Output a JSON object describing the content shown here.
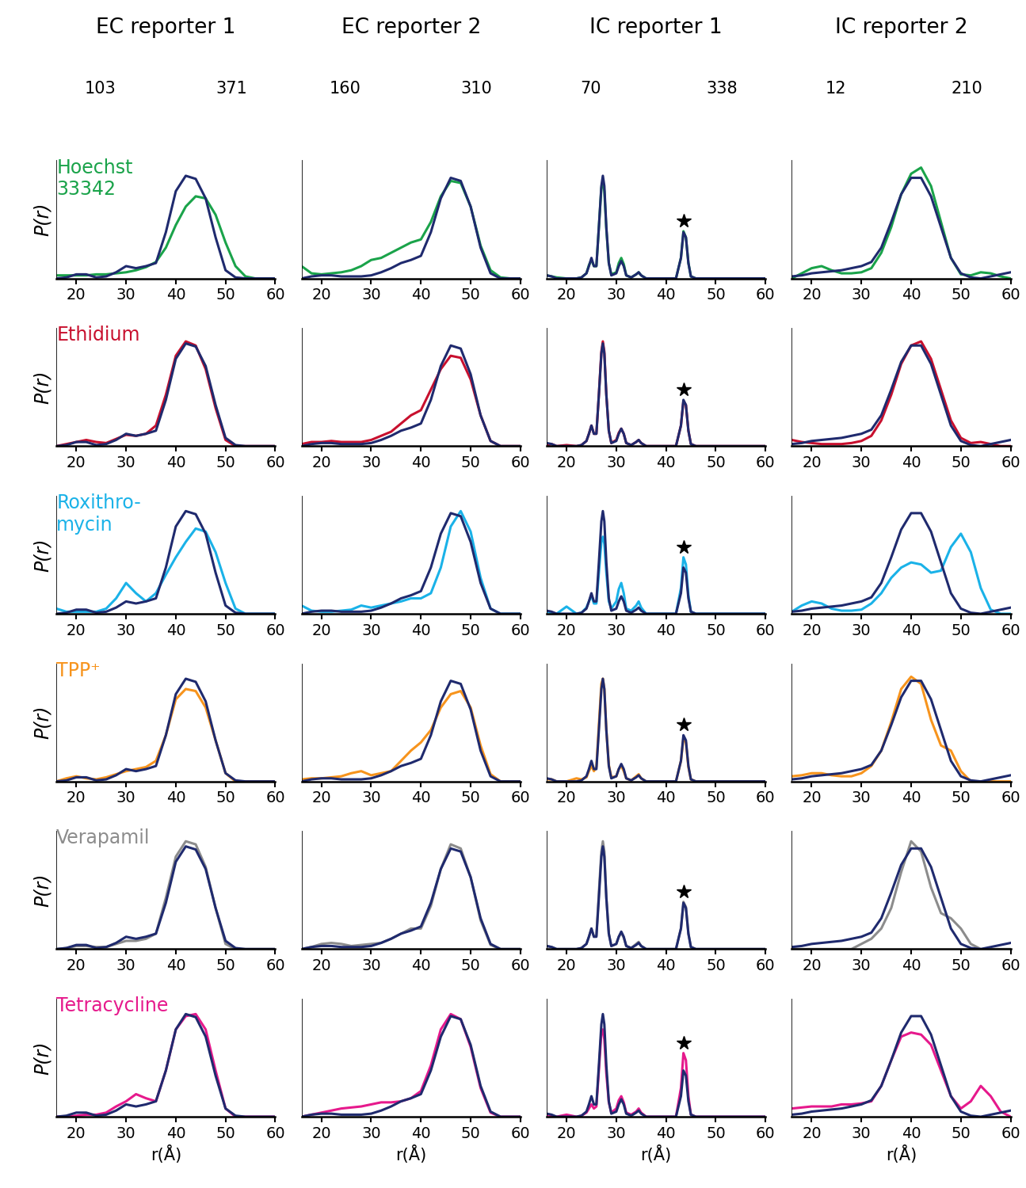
{
  "chart_data": {
    "type": "line",
    "xlim": [
      16,
      60
    ],
    "xticks": [
      20,
      30,
      40,
      50,
      60
    ],
    "ylim": [
      0,
      1.15
    ],
    "x_label": "r(Å)",
    "y_label": "P(r)",
    "tick_labels": "x",
    "grid": false,
    "columns": [
      {
        "title": "EC reporter 1",
        "residues": [
          "103",
          "371"
        ],
        "x": [
          16,
          18,
          20,
          22,
          24,
          26,
          28,
          30,
          32,
          34,
          36,
          38,
          40,
          42,
          44,
          46,
          48,
          50,
          52,
          54,
          56,
          58,
          60
        ],
        "reference": {
          "color": "#1f2a6e",
          "values": [
            0,
            0.01,
            0.04,
            0.04,
            0.01,
            0.02,
            0.06,
            0.12,
            0.1,
            0.12,
            0.15,
            0.45,
            0.85,
            1.0,
            0.97,
            0.78,
            0.4,
            0.08,
            0.01,
            0,
            0,
            0,
            0
          ]
        }
      },
      {
        "title": "EC reporter 2",
        "residues": [
          "160",
          "310"
        ],
        "x": [
          16,
          18,
          20,
          22,
          24,
          26,
          28,
          30,
          32,
          34,
          36,
          38,
          40,
          42,
          44,
          46,
          48,
          50,
          52,
          54,
          56,
          58,
          60
        ],
        "reference": {
          "color": "#1f2a6e",
          "values": [
            0,
            0.02,
            0.03,
            0.03,
            0.02,
            0.02,
            0.02,
            0.03,
            0.06,
            0.1,
            0.15,
            0.18,
            0.22,
            0.45,
            0.78,
            0.98,
            0.95,
            0.7,
            0.3,
            0.05,
            0,
            0,
            0
          ]
        }
      },
      {
        "title": "IC reporter 1",
        "residues": [
          "70",
          "338"
        ],
        "star_x": 43.6,
        "marker": "star",
        "x": [
          16,
          17,
          18,
          20,
          22,
          23,
          24,
          24.5,
          25,
          25.5,
          26,
          26.5,
          27,
          27.3,
          27.6,
          28,
          28.5,
          29,
          30,
          30.5,
          31,
          31.5,
          32,
          33,
          34,
          34.5,
          35,
          36,
          38,
          40,
          42,
          43,
          43.5,
          44,
          44.5,
          45,
          46,
          48,
          50,
          55,
          60
        ],
        "reference": {
          "color": "#1f2a6e",
          "values": [
            0.03,
            0.02,
            0,
            0,
            0,
            0.01,
            0.05,
            0.12,
            0.2,
            0.12,
            0.12,
            0.5,
            0.9,
            1.0,
            0.9,
            0.5,
            0.15,
            0.03,
            0.05,
            0.12,
            0.17,
            0.12,
            0.03,
            0.01,
            0.04,
            0.06,
            0.03,
            0,
            0,
            0,
            0,
            0.2,
            0.45,
            0.4,
            0.15,
            0.02,
            0,
            0,
            0,
            0,
            0
          ]
        }
      },
      {
        "title": "IC reporter 2",
        "residues": [
          "12",
          "210"
        ],
        "x": [
          16,
          18,
          20,
          22,
          24,
          26,
          28,
          30,
          32,
          34,
          36,
          38,
          40,
          42,
          44,
          46,
          48,
          50,
          52,
          54,
          56,
          58,
          60
        ],
        "reference": {
          "color": "#1f2a6e",
          "values": [
            0.02,
            0.03,
            0.05,
            0.06,
            0.07,
            0.08,
            0.1,
            0.12,
            0.16,
            0.3,
            0.55,
            0.82,
            0.98,
            0.98,
            0.8,
            0.5,
            0.2,
            0.05,
            0.01,
            0,
            0.02,
            0.04,
            0.06
          ]
        }
      }
    ],
    "series": [
      {
        "name": "Hoechst\n33342",
        "color": "#1aa34a",
        "values": [
          [
            0.03,
            0.03,
            0.03,
            0.03,
            0.04,
            0.04,
            0.05,
            0.06,
            0.08,
            0.11,
            0.16,
            0.3,
            0.52,
            0.7,
            0.8,
            0.78,
            0.62,
            0.35,
            0.12,
            0.02,
            0,
            0,
            0
          ],
          [
            0.12,
            0.05,
            0.04,
            0.05,
            0.06,
            0.08,
            0.12,
            0.18,
            0.2,
            0.25,
            0.3,
            0.35,
            0.38,
            0.55,
            0.8,
            0.95,
            0.93,
            0.7,
            0.32,
            0.08,
            0.01,
            0,
            0
          ],
          [
            0.03,
            0.02,
            0.01,
            0,
            0,
            0.01,
            0.05,
            0.13,
            0.18,
            0.12,
            0.12,
            0.5,
            0.88,
            0.95,
            0.85,
            0.48,
            0.15,
            0.04,
            0.06,
            0.15,
            0.2,
            0.14,
            0.03,
            0.01,
            0.04,
            0.06,
            0.03,
            0,
            0,
            0,
            0,
            0.2,
            0.46,
            0.4,
            0.15,
            0.02,
            0,
            0,
            0,
            0,
            0
          ],
          [
            0,
            0.05,
            0.1,
            0.12,
            0.08,
            0.05,
            0.05,
            0.06,
            0.1,
            0.25,
            0.5,
            0.82,
            1.02,
            1.08,
            0.9,
            0.55,
            0.2,
            0.04,
            0.03,
            0.06,
            0.05,
            0.02,
            0
          ]
        ]
      },
      {
        "name": "Ethidium",
        "color": "#c8102e",
        "values": [
          [
            0,
            0.02,
            0.04,
            0.06,
            0.04,
            0.03,
            0.07,
            0.11,
            0.1,
            0.12,
            0.2,
            0.5,
            0.88,
            1.02,
            0.98,
            0.75,
            0.37,
            0.06,
            0,
            0,
            0,
            0,
            0
          ],
          [
            0.02,
            0.04,
            0.04,
            0.05,
            0.04,
            0.04,
            0.04,
            0.06,
            0.1,
            0.14,
            0.22,
            0.3,
            0.35,
            0.55,
            0.75,
            0.88,
            0.86,
            0.65,
            0.3,
            0.05,
            0,
            0,
            0
          ],
          [
            0.01,
            0.02,
            0,
            0.01,
            0,
            0.01,
            0.05,
            0.12,
            0.2,
            0.12,
            0.12,
            0.5,
            0.92,
            1.02,
            0.92,
            0.5,
            0.15,
            0.03,
            0.06,
            0.13,
            0.17,
            0.12,
            0.03,
            0.01,
            0.04,
            0.06,
            0.03,
            0,
            0,
            0,
            0,
            0.2,
            0.44,
            0.4,
            0.15,
            0.02,
            0,
            0,
            0,
            0,
            0
          ],
          [
            0.06,
            0.04,
            0.03,
            0.02,
            0.02,
            0.02,
            0.03,
            0.05,
            0.1,
            0.25,
            0.5,
            0.8,
            0.98,
            1.02,
            0.85,
            0.55,
            0.25,
            0.08,
            0.03,
            0.04,
            0.02,
            0,
            0
          ]
        ]
      },
      {
        "name": "Roxithro-\nmycin",
        "color": "#1ab2e8",
        "values": [
          [
            0.05,
            0.02,
            0.02,
            0.02,
            0.02,
            0.05,
            0.15,
            0.3,
            0.2,
            0.12,
            0.2,
            0.38,
            0.55,
            0.7,
            0.83,
            0.8,
            0.6,
            0.3,
            0.05,
            0,
            0,
            0,
            0
          ],
          [
            0.08,
            0.03,
            0.02,
            0.02,
            0.03,
            0.04,
            0.08,
            0.06,
            0.08,
            0.1,
            0.12,
            0.15,
            0.15,
            0.2,
            0.45,
            0.85,
            1.0,
            0.8,
            0.35,
            0.05,
            0,
            0,
            0
          ],
          [
            0.02,
            0.01,
            0,
            0.07,
            0,
            0.01,
            0.06,
            0.12,
            0.18,
            0.1,
            0.1,
            0.4,
            0.7,
            0.75,
            0.68,
            0.4,
            0.12,
            0.05,
            0.12,
            0.24,
            0.3,
            0.2,
            0.05,
            0.03,
            0.08,
            0.12,
            0.06,
            0,
            0,
            0,
            0,
            0.25,
            0.55,
            0.48,
            0.18,
            0.02,
            0,
            0,
            0,
            0,
            0
          ],
          [
            0.02,
            0.08,
            0.12,
            0.1,
            0.05,
            0.03,
            0.03,
            0.04,
            0.1,
            0.2,
            0.35,
            0.45,
            0.5,
            0.48,
            0.4,
            0.42,
            0.65,
            0.78,
            0.6,
            0.25,
            0.04,
            0,
            0
          ]
        ]
      },
      {
        "name": "TPP⁺",
        "color": "#f7941d",
        "values": [
          [
            0,
            0.03,
            0.05,
            0.03,
            0.02,
            0.04,
            0.07,
            0.1,
            0.12,
            0.14,
            0.2,
            0.45,
            0.8,
            0.9,
            0.88,
            0.72,
            0.4,
            0.08,
            0,
            0,
            0,
            0,
            0
          ],
          [
            0.02,
            0.03,
            0.03,
            0.04,
            0.05,
            0.08,
            0.1,
            0.06,
            0.08,
            0.1,
            0.2,
            0.3,
            0.38,
            0.5,
            0.72,
            0.85,
            0.88,
            0.72,
            0.35,
            0.07,
            0,
            0,
            0
          ],
          [
            0.02,
            0.02,
            0,
            0,
            0.03,
            0.02,
            0.04,
            0.1,
            0.15,
            0.1,
            0.14,
            0.55,
            0.95,
            1.0,
            0.9,
            0.5,
            0.16,
            0.04,
            0.05,
            0.12,
            0.15,
            0.1,
            0.03,
            0.01,
            0.05,
            0.07,
            0.03,
            0,
            0,
            0,
            0,
            0.2,
            0.42,
            0.38,
            0.14,
            0.02,
            0,
            0,
            0,
            0,
            0
          ],
          [
            0.05,
            0.06,
            0.08,
            0.08,
            0.06,
            0.05,
            0.05,
            0.08,
            0.15,
            0.3,
            0.58,
            0.9,
            1.02,
            0.95,
            0.6,
            0.35,
            0.3,
            0.1,
            0,
            0,
            0,
            0,
            0
          ]
        ]
      },
      {
        "name": "Verapamil",
        "color": "#8c8c8c",
        "values": [
          [
            0,
            0.01,
            0.03,
            0.03,
            0.02,
            0.02,
            0.05,
            0.08,
            0.08,
            0.1,
            0.15,
            0.5,
            0.9,
            1.05,
            1.02,
            0.8,
            0.4,
            0.05,
            0,
            0,
            0,
            0,
            0
          ],
          [
            0,
            0.02,
            0.05,
            0.06,
            0.05,
            0.03,
            0.04,
            0.05,
            0.06,
            0.1,
            0.15,
            0.2,
            0.2,
            0.42,
            0.78,
            1.02,
            0.98,
            0.7,
            0.28,
            0.04,
            0,
            0,
            0
          ],
          [
            0.03,
            0.02,
            0,
            0,
            0,
            0.01,
            0.05,
            0.12,
            0.2,
            0.12,
            0.13,
            0.55,
            0.95,
            1.05,
            0.95,
            0.5,
            0.15,
            0.03,
            0.05,
            0.12,
            0.16,
            0.11,
            0.03,
            0.01,
            0.05,
            0.07,
            0.03,
            0,
            0,
            0,
            0,
            0.2,
            0.46,
            0.41,
            0.15,
            0.02,
            0,
            0,
            0,
            0,
            0
          ],
          [
            0,
            0,
            0,
            0,
            0,
            0,
            0,
            0.05,
            0.1,
            0.2,
            0.4,
            0.75,
            1.05,
            0.95,
            0.6,
            0.35,
            0.3,
            0.2,
            0.05,
            0,
            0,
            0,
            0
          ]
        ]
      },
      {
        "name": "Tetracycline",
        "color": "#e6198c",
        "values": [
          [
            0,
            0,
            0.01,
            0.02,
            0.02,
            0.04,
            0.1,
            0.15,
            0.22,
            0.18,
            0.15,
            0.45,
            0.85,
            0.98,
            1.0,
            0.85,
            0.45,
            0.08,
            0,
            0,
            0,
            0,
            0
          ],
          [
            0,
            0.02,
            0.04,
            0.06,
            0.08,
            0.09,
            0.1,
            0.12,
            0.14,
            0.14,
            0.15,
            0.18,
            0.25,
            0.5,
            0.85,
            1.0,
            0.95,
            0.68,
            0.28,
            0.04,
            0,
            0,
            0
          ],
          [
            0.02,
            0.01,
            0,
            0.02,
            0,
            0.01,
            0.04,
            0.08,
            0.12,
            0.08,
            0.1,
            0.45,
            0.82,
            0.85,
            0.75,
            0.42,
            0.14,
            0.04,
            0.08,
            0.16,
            0.2,
            0.14,
            0.04,
            0.02,
            0.05,
            0.08,
            0.04,
            0,
            0,
            0,
            0,
            0.28,
            0.62,
            0.55,
            0.2,
            0.02,
            0,
            0,
            0,
            0,
            0
          ],
          [
            0.08,
            0.09,
            0.1,
            0.1,
            0.1,
            0.12,
            0.12,
            0.13,
            0.15,
            0.3,
            0.55,
            0.78,
            0.82,
            0.8,
            0.7,
            0.45,
            0.2,
            0.08,
            0.15,
            0.3,
            0.2,
            0.05,
            0
          ]
        ]
      }
    ]
  }
}
